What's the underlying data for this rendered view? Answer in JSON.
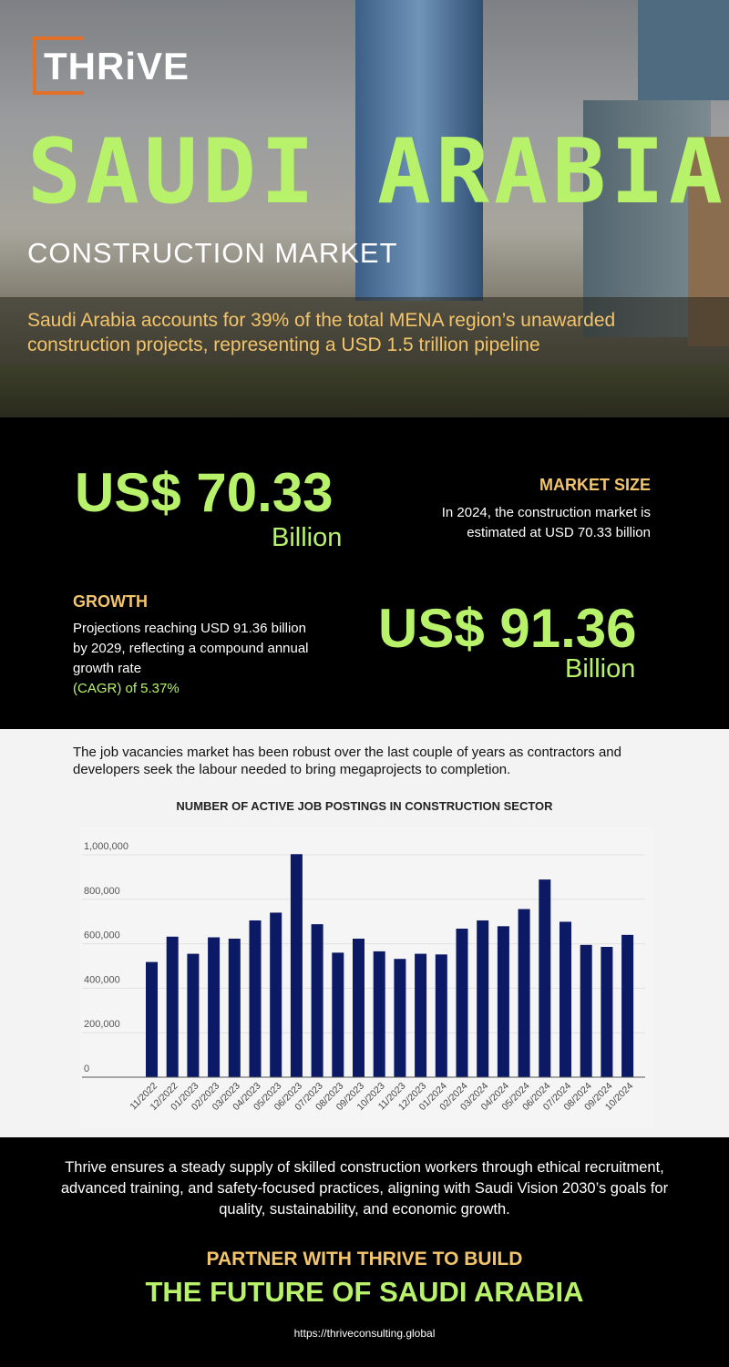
{
  "brand": {
    "logo_text": "THRiVE",
    "accent": "#e0702a"
  },
  "hero": {
    "title": "SAUDI ARABIA",
    "subtitle": "CONSTRUCTION MARKET",
    "description": "Saudi Arabia accounts for 39% of the total MENA region’s unawarded construction projects, representing a USD 1.5 trillion pipeline"
  },
  "market": {
    "value": "US$ 70.33",
    "unit": "Billion",
    "label": "MARKET SIZE",
    "text": "In 2024, the construction market is estimated at USD 70.33 billion"
  },
  "growth": {
    "label": "GROWTH",
    "text": "Projections reaching USD 91.36 billion by 2029, reflecting a compound annual growth rate",
    "cagr": "(CAGR) of 5.37%",
    "value": "US$ 91.36",
    "unit": "Billion"
  },
  "intro": "The job vacancies market has been robust over the last couple of years as contractors and developers seek the labour needed to bring megaprojects to completion.",
  "chart_data": {
    "type": "bar",
    "title": "NUMBER OF ACTIVE JOB POSTINGS IN CONSTRUCTION SECTOR",
    "xlabel": "",
    "ylabel": "",
    "ylim": [
      0,
      1000000
    ],
    "yticks": [
      "0",
      "200,000",
      "400,000",
      "600,000",
      "800,000",
      "1,000,000"
    ],
    "grid": true,
    "color": "#0c1a66",
    "categories": [
      "11/2022",
      "12/2022",
      "01/2023",
      "02/2023",
      "03/2023",
      "04/2023",
      "05/2023",
      "06/2023",
      "07/2023",
      "08/2023",
      "09/2023",
      "10/2023",
      "11/2023",
      "12/2023",
      "01/2024",
      "02/2024",
      "03/2024",
      "04/2024",
      "05/2024",
      "06/2024",
      "07/2024",
      "08/2024",
      "09/2024",
      "10/2024"
    ],
    "values": [
      518000,
      632000,
      555000,
      629000,
      623000,
      705000,
      740000,
      1003000,
      688000,
      560000,
      623000,
      566000,
      532000,
      555000,
      552000,
      668000,
      705000,
      679000,
      756000,
      889000,
      699000,
      595000,
      586000,
      640000
    ]
  },
  "footer": {
    "text": "Thrive ensures a steady supply of skilled construction workers through ethical recruitment, advanced training, and safety-focused practices, aligning with Saudi Vision 2030’s goals for quality, sustainability, and economic growth.",
    "cta_1": "PARTNER WITH THRIVE TO BUILD",
    "cta_2": "THE FUTURE OF SAUDI ARABIA",
    "url": "https://thriveconsulting.global"
  }
}
